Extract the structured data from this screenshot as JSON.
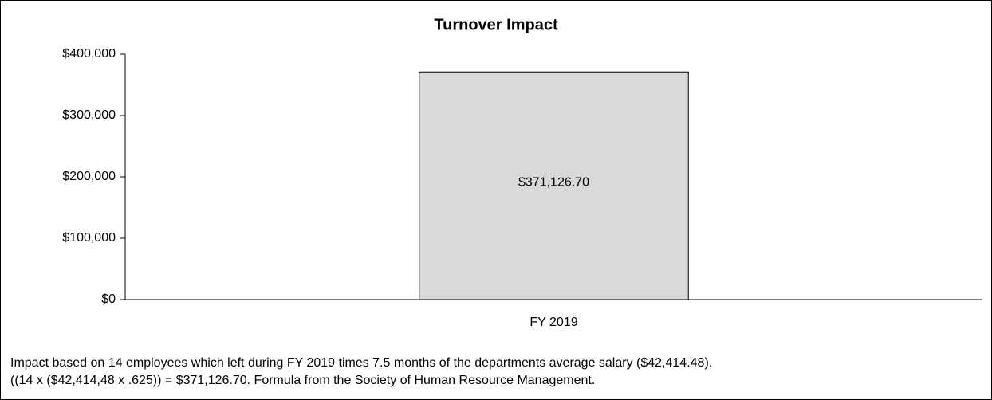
{
  "chart_data": {
    "type": "bar",
    "title": "Turnover Impact",
    "categories": [
      "FY 2019"
    ],
    "values": [
      371126.7
    ],
    "value_labels": [
      "$371,126.70"
    ],
    "color": "#d9d9d9",
    "ylim": [
      0,
      400000
    ],
    "yticks": [
      {
        "value": 0,
        "label": "$0"
      },
      {
        "value": 100000,
        "label": "$100,000"
      },
      {
        "value": 200000,
        "label": "$200,000"
      },
      {
        "value": 300000,
        "label": "$300,000"
      },
      {
        "value": 400000,
        "label": "$400,000"
      }
    ],
    "grid": false,
    "annotations": [
      "Impact based on 14 employees which left during FY 2019 times 7.5 months of the departments average salary ($42,414.48).",
      "((14 x ($42,414,48 x .625)) = $371,126.70.  Formula from the Society of Human Resource Management."
    ]
  }
}
